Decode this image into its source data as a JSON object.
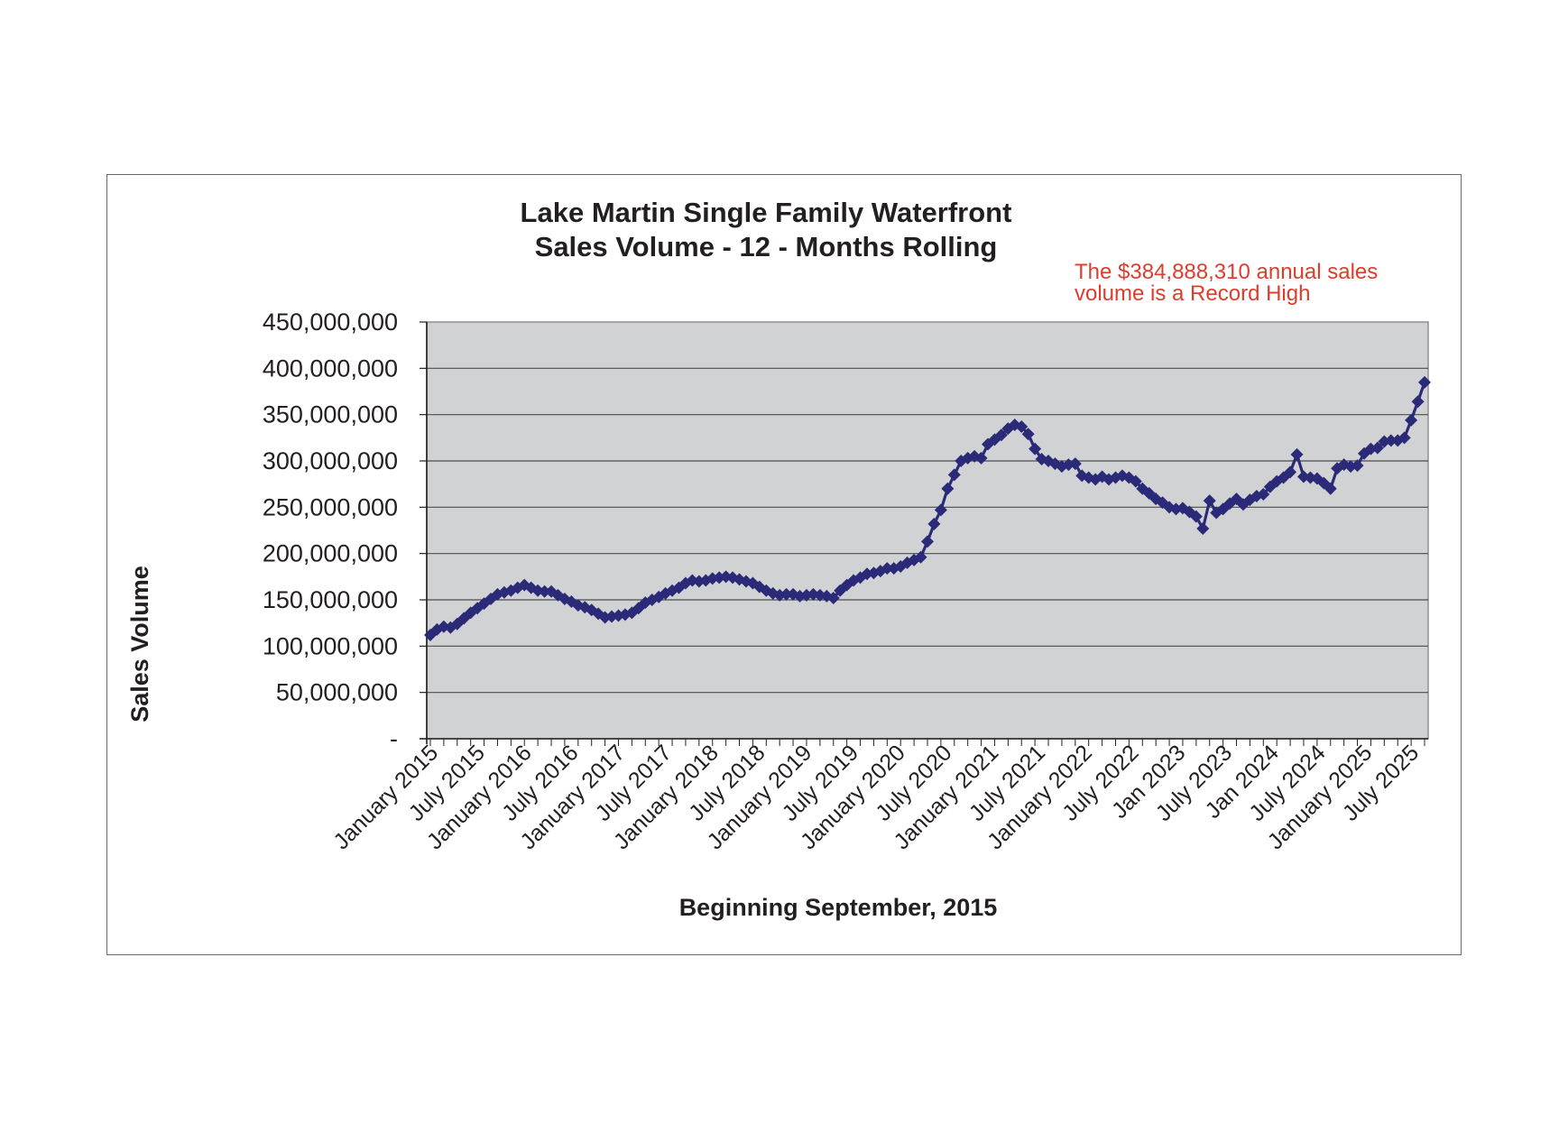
{
  "chart_data": {
    "type": "line",
    "title_lines": [
      "Lake Martin Single Family Waterfront",
      "Sales Volume - 12 - Months Rolling"
    ],
    "annotation_lines": [
      "The $384,888,310 annual sales",
      "volume is a Record High"
    ],
    "xlabel": "Beginning September, 2015",
    "ylabel": "Sales Volume",
    "ylim": [
      0,
      450000000
    ],
    "y_ticks": [
      0,
      50000000,
      100000000,
      150000000,
      200000000,
      250000000,
      300000000,
      350000000,
      400000000,
      450000000
    ],
    "y_tick_labels": [
      "-",
      "50,000,000",
      "100,000,000",
      "150,000,000",
      "200,000,000",
      "250,000,000",
      "300,000,000",
      "350,000,000",
      "400,000,000",
      "450,000,000"
    ],
    "x_tick_labels": [
      "January 2015",
      "July 2015",
      "January 2016",
      "July 2016",
      "January 2017",
      "July 2017",
      "January 2018",
      "July 2018",
      "January 2019",
      "July 2019",
      "January 2020",
      "July 2020",
      "January 2021",
      "July 2021",
      "January 2022",
      "July 2022",
      "Jan 2023",
      "July 2023",
      "Jan 2024",
      "July 2024",
      "January 2025",
      "July 2025"
    ],
    "grid": true,
    "colors": {
      "line": "#2b2a78",
      "plot_bg": "#d1d2d4",
      "grid": "#4d4d4f",
      "annotation": "#e03c2d"
    },
    "series": [
      {
        "marker": "diamond",
        "values": [
          112000000,
          118000000,
          121000000,
          120000000,
          124000000,
          130000000,
          136000000,
          141000000,
          146000000,
          151000000,
          156000000,
          158000000,
          160000000,
          163000000,
          166000000,
          163000000,
          160000000,
          159000000,
          159000000,
          155000000,
          151000000,
          148000000,
          144000000,
          142000000,
          139000000,
          135000000,
          131000000,
          132000000,
          133000000,
          134000000,
          136000000,
          141000000,
          147000000,
          150000000,
          153000000,
          157000000,
          160000000,
          163000000,
          168000000,
          171000000,
          170000000,
          171000000,
          173000000,
          174000000,
          175000000,
          174000000,
          172000000,
          170000000,
          168000000,
          164000000,
          160000000,
          157000000,
          155000000,
          156000000,
          156000000,
          154000000,
          155000000,
          156000000,
          155000000,
          154000000,
          152000000,
          160000000,
          166000000,
          171000000,
          174000000,
          178000000,
          179000000,
          181000000,
          184000000,
          184000000,
          186000000,
          190000000,
          193000000,
          196000000,
          213000000,
          232000000,
          247000000,
          270000000,
          285000000,
          300000000,
          303000000,
          305000000,
          303000000,
          318000000,
          323000000,
          328000000,
          335000000,
          339000000,
          337000000,
          329000000,
          313000000,
          302000000,
          300000000,
          297000000,
          294000000,
          296000000,
          297000000,
          284000000,
          282000000,
          280000000,
          283000000,
          280000000,
          282000000,
          284000000,
          282000000,
          278000000,
          270000000,
          265000000,
          259000000,
          255000000,
          250000000,
          248000000,
          249000000,
          245000000,
          240000000,
          227000000,
          257000000,
          244000000,
          248000000,
          254000000,
          259000000,
          253000000,
          258000000,
          262000000,
          264000000,
          272000000,
          278000000,
          282000000,
          288000000,
          307000000,
          283000000,
          282000000,
          281000000,
          276000000,
          270000000,
          292000000,
          296000000,
          294000000,
          295000000,
          308000000,
          313000000,
          314000000,
          321000000,
          322000000,
          322000000,
          325000000,
          344000000,
          364000000,
          384888310
        ]
      }
    ]
  }
}
